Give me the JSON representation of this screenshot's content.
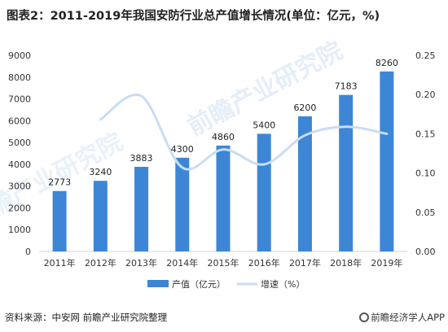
{
  "title": "图表2：2011-2019年我国安防行业总产值增长情况(单位：亿元，%)",
  "source": "资料来源：中安网 前瞻产业研究院整理",
  "watermark_center": "前瞻产业研究院",
  "watermark_corner": "前瞻经济学人APP",
  "colors": {
    "bar": "#3D86D6",
    "line": "#C9DDF2",
    "axis_text": "#333333"
  },
  "chart_data": {
    "type": "bar+line",
    "title": "图表2：2011-2019年我国安防行业总产值增长情况(单位：亿元，%)",
    "categories": [
      "2011年",
      "2012年",
      "2013年",
      "2014年",
      "2015年",
      "2016年",
      "2017年",
      "2018年",
      "2019年"
    ],
    "series": [
      {
        "name": "产值（亿元）",
        "type": "bar",
        "axis": "left",
        "values": [
          2773,
          3240,
          3883,
          4300,
          4860,
          5400,
          6200,
          7183,
          8260
        ]
      },
      {
        "name": "增速（%）",
        "type": "line",
        "axis": "right",
        "values": [
          null,
          0.168,
          0.198,
          0.107,
          0.13,
          0.111,
          0.148,
          0.159,
          0.15
        ]
      }
    ],
    "y_left": {
      "range": [
        0,
        9000
      ],
      "ticks": [
        "0",
        "1000",
        "2000",
        "3000",
        "4000",
        "5000",
        "6000",
        "7000",
        "8000",
        "9000"
      ]
    },
    "y_right": {
      "range": [
        0,
        0.25
      ],
      "ticks": [
        "0.00",
        "0.05",
        "0.10",
        "0.15",
        "0.20",
        "0.25"
      ]
    },
    "legend_position": "bottom",
    "grid": false
  }
}
